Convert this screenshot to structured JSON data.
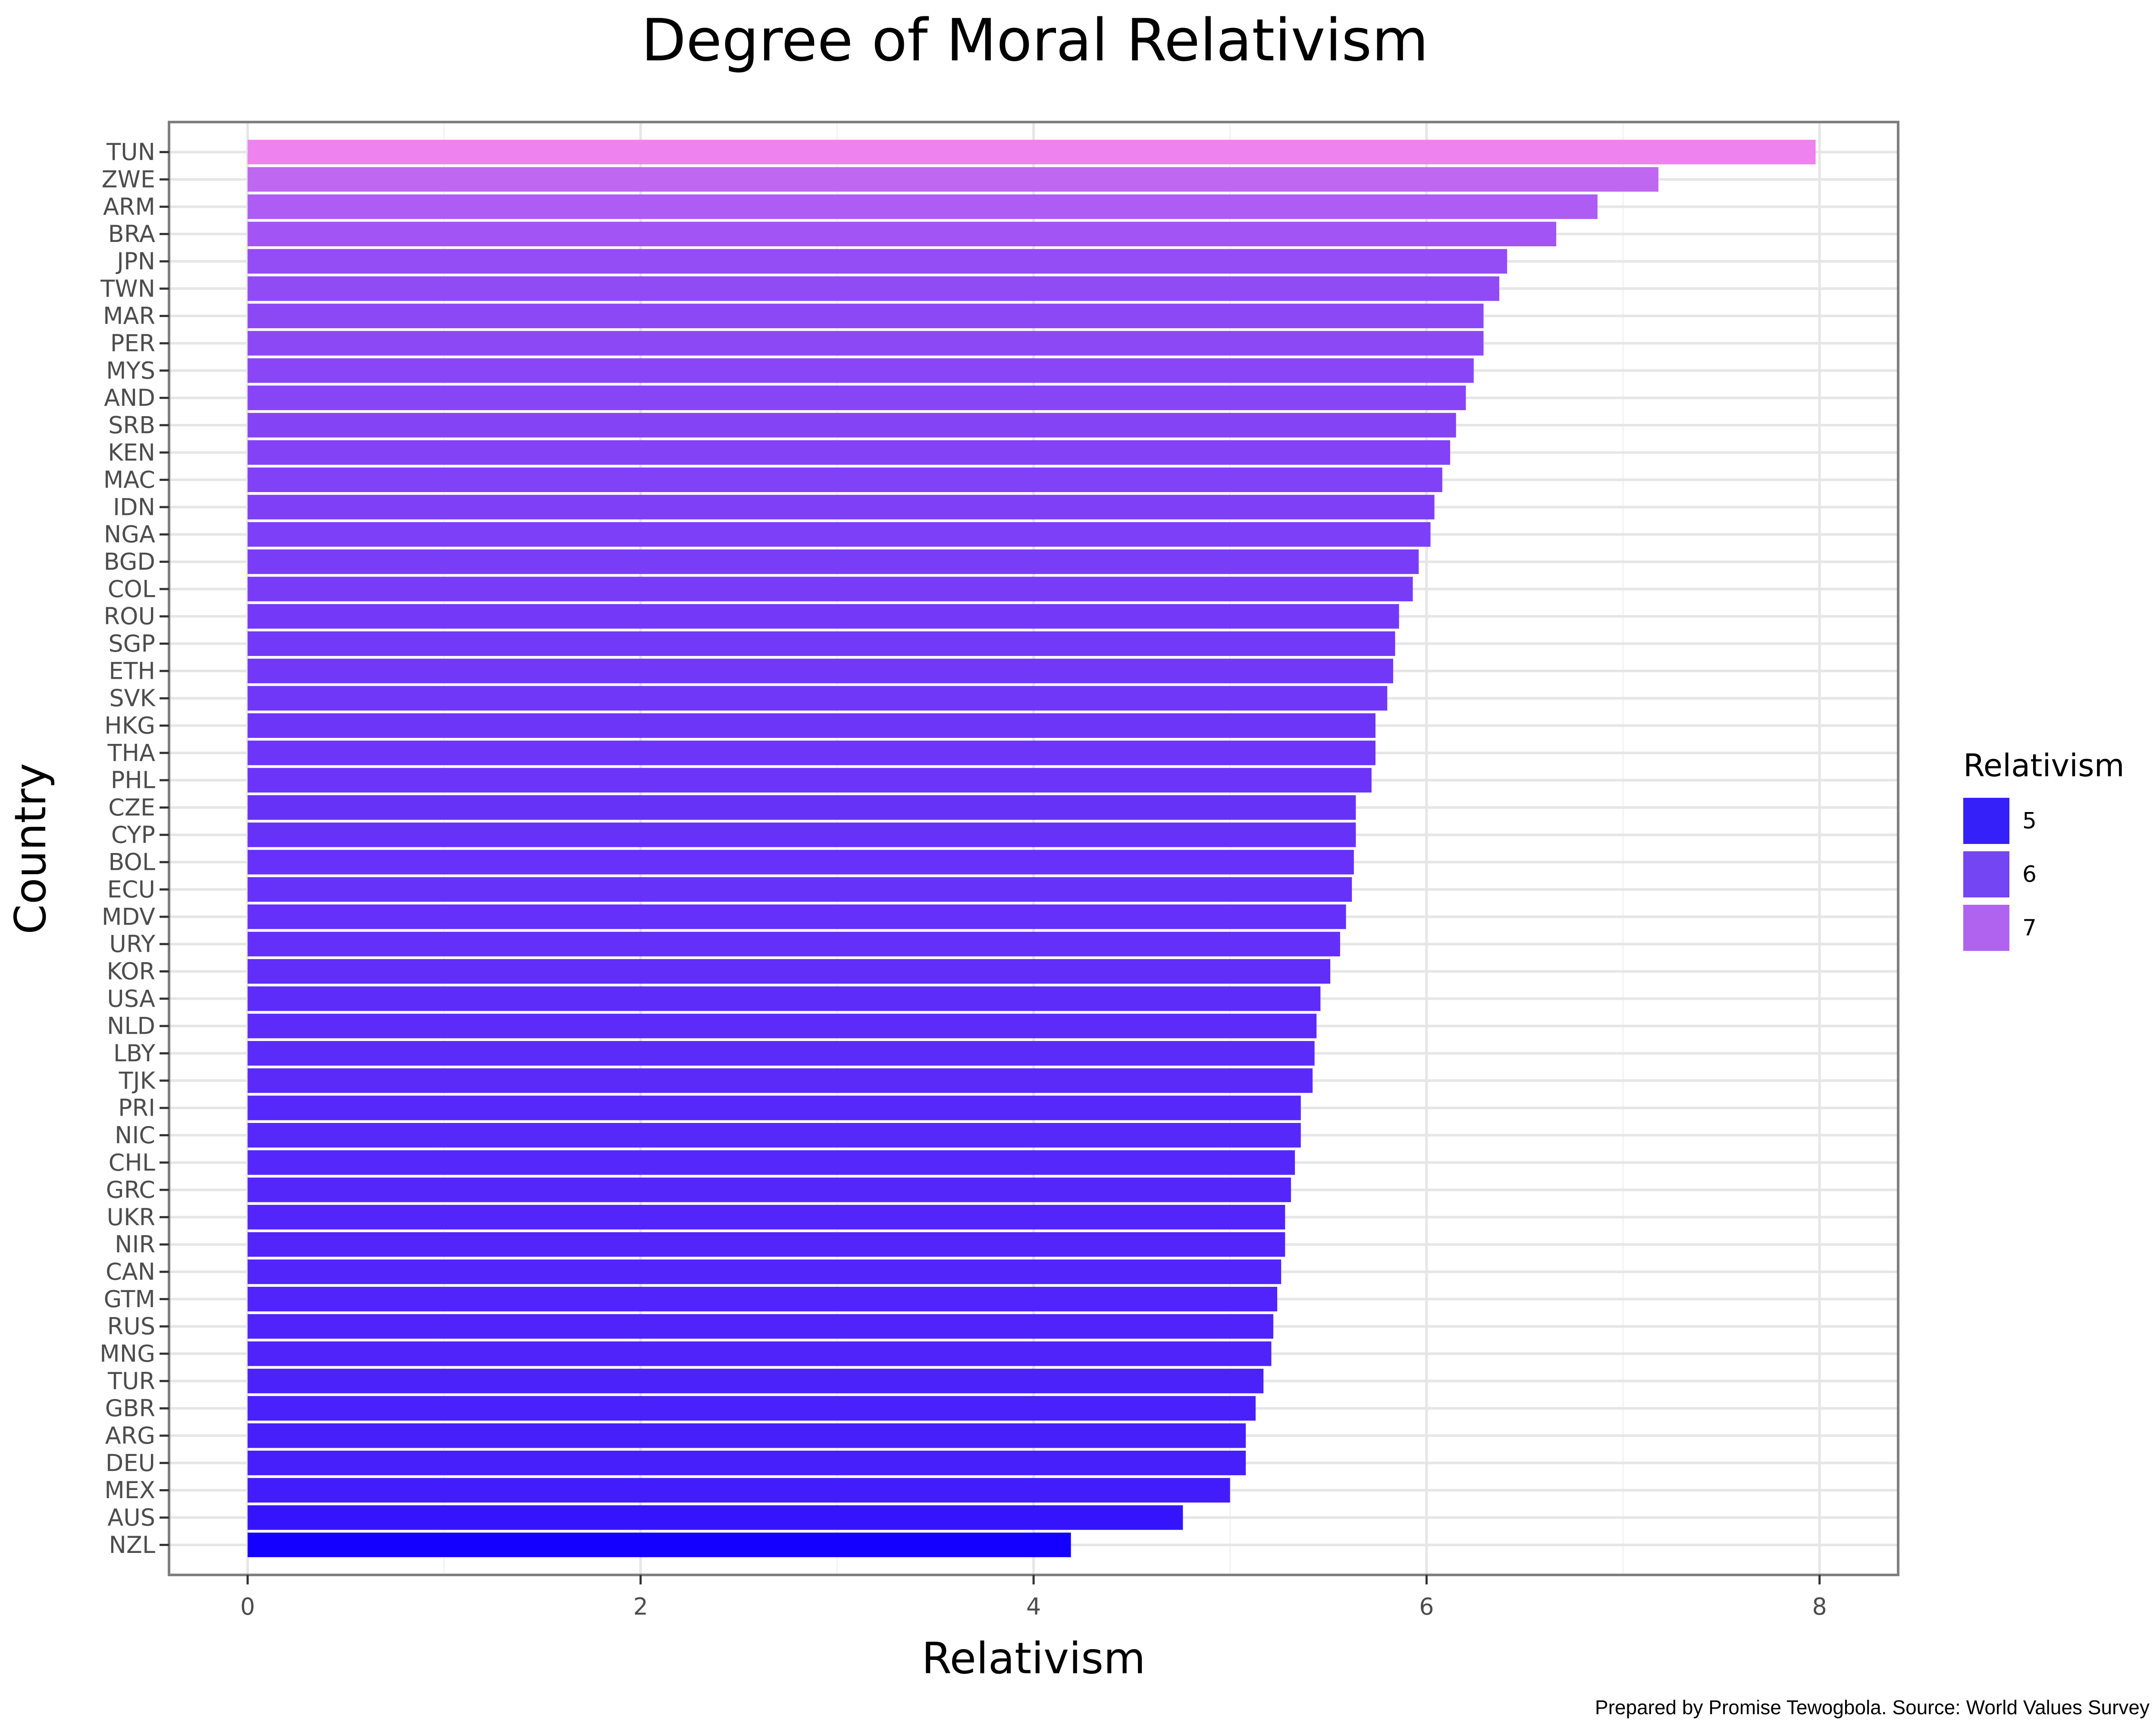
{
  "chart_data": {
    "type": "bar",
    "orientation": "horizontal",
    "title": "Degree of Moral Relativism",
    "xlabel": "Relativism",
    "ylabel": "Country",
    "caption": "Prepared by Promise Tewogbola. Source: World Values Survey",
    "xlim": [
      -0.4,
      8.4
    ],
    "xticks": [
      "0",
      "2",
      "4",
      "6",
      "8"
    ],
    "grid": true,
    "legend": {
      "title": "Relativism",
      "position": "right",
      "entries": [
        {
          "label": "5",
          "value": 5,
          "color": "#3520fa"
        },
        {
          "label": "6",
          "value": 6,
          "color": "#7445f2"
        },
        {
          "label": "7",
          "value": 7,
          "color": "#b063ee"
        }
      ]
    },
    "color_scale": {
      "min_value": 4.19,
      "max_value": 7.98,
      "low_color": "#1400ff",
      "high_color": "#ee82ee"
    },
    "categories": [
      "TUN",
      "ZWE",
      "ARM",
      "BRA",
      "JPN",
      "TWN",
      "MAR",
      "PER",
      "MYS",
      "AND",
      "SRB",
      "KEN",
      "MAC",
      "IDN",
      "NGA",
      "BGD",
      "COL",
      "ROU",
      "SGP",
      "ETH",
      "SVK",
      "HKG",
      "THA",
      "PHL",
      "CZE",
      "CYP",
      "BOL",
      "ECU",
      "MDV",
      "URY",
      "KOR",
      "USA",
      "NLD",
      "LBY",
      "TJK",
      "PRI",
      "NIC",
      "CHL",
      "GRC",
      "UKR",
      "NIR",
      "CAN",
      "GTM",
      "RUS",
      "MNG",
      "TUR",
      "GBR",
      "ARG",
      "DEU",
      "MEX",
      "AUS",
      "NZL"
    ],
    "values": [
      7.98,
      7.18,
      6.87,
      6.66,
      6.41,
      6.37,
      6.29,
      6.29,
      6.24,
      6.2,
      6.15,
      6.12,
      6.08,
      6.04,
      6.02,
      5.96,
      5.93,
      5.86,
      5.84,
      5.83,
      5.8,
      5.74,
      5.74,
      5.72,
      5.64,
      5.64,
      5.63,
      5.62,
      5.59,
      5.56,
      5.51,
      5.46,
      5.44,
      5.43,
      5.42,
      5.36,
      5.36,
      5.33,
      5.31,
      5.28,
      5.28,
      5.26,
      5.24,
      5.22,
      5.21,
      5.17,
      5.13,
      5.08,
      5.08,
      5.0,
      4.76,
      4.19
    ]
  }
}
